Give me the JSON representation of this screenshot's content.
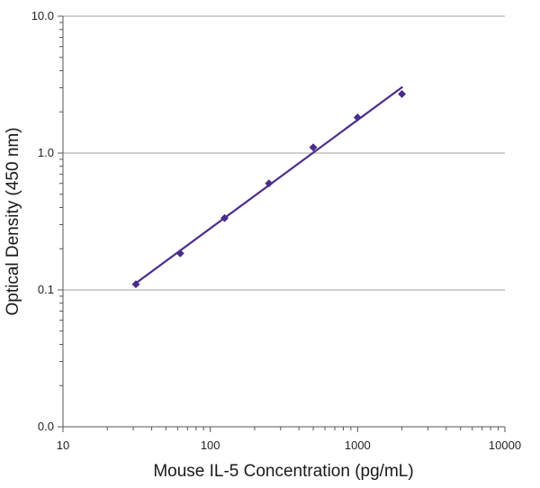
{
  "chart_data": {
    "type": "scatter",
    "title": "",
    "xlabel": "Mouse IL-5 Concentration (pg/mL)",
    "ylabel": "Optical Density (450 nm)",
    "x_scale": "log",
    "y_scale": "log",
    "xlim": [
      10,
      10000
    ],
    "ylim": [
      0.01,
      10
    ],
    "x_ticks": [
      {
        "value": 10,
        "label": "10"
      },
      {
        "value": 100,
        "label": "100"
      },
      {
        "value": 1000,
        "label": "1000"
      },
      {
        "value": 10000,
        "label": "10000"
      }
    ],
    "y_ticks": [
      {
        "value": 0.01,
        "label": "0.0"
      },
      {
        "value": 0.1,
        "label": "0.1"
      },
      {
        "value": 1,
        "label": "1.0"
      },
      {
        "value": 10,
        "label": "10.0"
      }
    ],
    "grid": "horizontal major lines",
    "legend": "none",
    "series": [
      {
        "marker": "diamond",
        "color": "#4a2c8a",
        "points": [
          {
            "x": 31.25,
            "y": 0.11
          },
          {
            "x": 62.5,
            "y": 0.185
          },
          {
            "x": 125,
            "y": 0.335
          },
          {
            "x": 250,
            "y": 0.6
          },
          {
            "x": 500,
            "y": 1.1
          },
          {
            "x": 1000,
            "y": 1.82
          },
          {
            "x": 2000,
            "y": 2.7
          }
        ]
      }
    ],
    "fit_line": {
      "color": "#4a2c8a",
      "from": {
        "x": 31.25,
        "y": 0.112
      },
      "to": {
        "x": 2000,
        "y": 3.02
      }
    }
  }
}
